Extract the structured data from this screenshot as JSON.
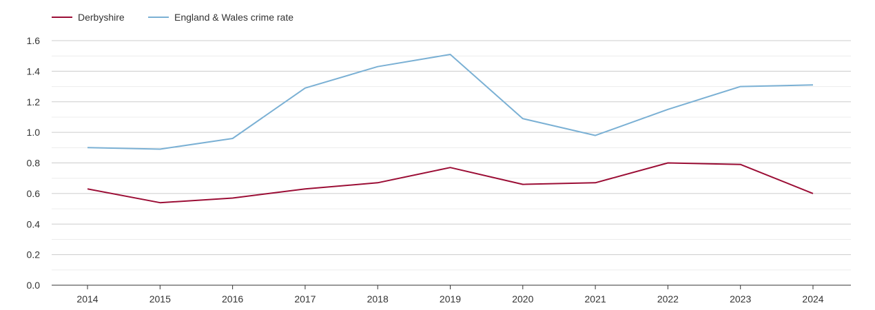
{
  "chart_data": {
    "type": "line",
    "title": "",
    "xlabel": "",
    "ylabel": "",
    "categories": [
      "2014",
      "2015",
      "2016",
      "2017",
      "2018",
      "2019",
      "2020",
      "2021",
      "2022",
      "2023",
      "2024"
    ],
    "ylim": [
      0,
      1.6
    ],
    "yticks": [
      "0.0",
      "0.2",
      "0.4",
      "0.6",
      "0.8",
      "1.0",
      "1.2",
      "1.4",
      "1.6"
    ],
    "grid": true,
    "legend_position": "top-left",
    "series": [
      {
        "name": "Derbyshire",
        "color": "#9b0d35",
        "values": [
          0.63,
          0.54,
          0.57,
          0.63,
          0.67,
          0.77,
          0.66,
          0.67,
          0.8,
          0.79,
          0.6
        ]
      },
      {
        "name": "England & Wales crime rate",
        "color": "#7ab0d4",
        "values": [
          0.9,
          0.89,
          0.96,
          1.29,
          1.43,
          1.51,
          1.09,
          0.98,
          1.15,
          1.3,
          1.31
        ]
      }
    ]
  }
}
